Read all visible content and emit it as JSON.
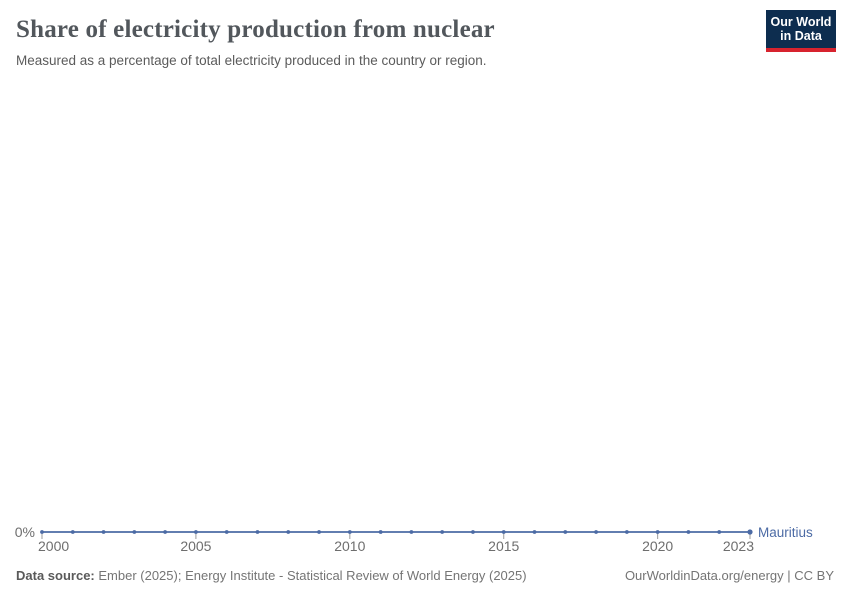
{
  "header": {
    "title": "Share of electricity production from nuclear",
    "subtitle": "Measured as a percentage of total electricity produced in the country or region.",
    "logo": {
      "line1": "Our World",
      "line2": "in Data",
      "bg_color": "#0d2d4f",
      "accent_color": "#d7232e"
    }
  },
  "chart_data": {
    "type": "line",
    "title": "Share of electricity production from nuclear",
    "subtitle": "Measured as a percentage of total electricity produced in the country or region.",
    "unit": "%",
    "x": [
      2000,
      2001,
      2002,
      2003,
      2004,
      2005,
      2006,
      2007,
      2008,
      2009,
      2010,
      2011,
      2012,
      2013,
      2014,
      2015,
      2016,
      2017,
      2018,
      2019,
      2020,
      2021,
      2022,
      2023
    ],
    "series": [
      {
        "name": "Mauritius",
        "color": "#4c6ba5",
        "values": [
          0,
          0,
          0,
          0,
          0,
          0,
          0,
          0,
          0,
          0,
          0,
          0,
          0,
          0,
          0,
          0,
          0,
          0,
          0,
          0,
          0,
          0,
          0,
          0
        ]
      }
    ],
    "x_ticks": [
      2000,
      2005,
      2010,
      2015,
      2020,
      2023
    ],
    "y_tick_labels": [
      "0%"
    ],
    "xlim": [
      2000,
      2023
    ],
    "ylim": [
      0,
      0
    ],
    "xlabel": "",
    "ylabel": "",
    "grid": false,
    "legend_position": "line-end-label",
    "tick_color": "#9b9b9b",
    "tick_label_color": "#6e6e6e"
  },
  "footer": {
    "source_label": "Data source:",
    "source_text": " Ember (2025); Energy Institute - Statistical Review of World Energy (2025)",
    "rights": "OurWorldinData.org/energy | CC BY"
  }
}
